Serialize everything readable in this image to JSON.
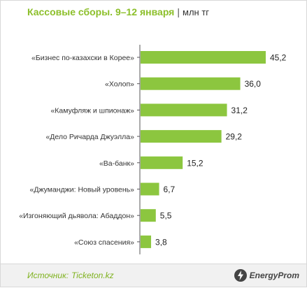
{
  "header": {
    "title": "Кассовые сборы. 9–12 января",
    "separator": "|",
    "unit": "млн тг"
  },
  "chart_data": {
    "type": "bar",
    "orientation": "horizontal",
    "categories": [
      "«Бизнес по-казахски в Корее»",
      "«Холоп»",
      "«Камуфляж и шпионаж»",
      "«Дело Ричарда Джуэлла»",
      "«Ва-банк»",
      "«Джуманджи: Новый уровень»",
      "«Изгоняющий дьявола: Абаддон»",
      "«Союз спасения»"
    ],
    "values": [
      45.2,
      36.0,
      31.2,
      29.2,
      15.2,
      6.7,
      5.5,
      3.8
    ],
    "value_labels": [
      "45,2",
      "36,0",
      "31,2",
      "29,2",
      "15,2",
      "6,7",
      "5,5",
      "3,8"
    ],
    "title": "Кассовые сборы. 9–12 января",
    "unit": "млн тг",
    "xlim": [
      0,
      45.2
    ],
    "grid": false,
    "legend": "none",
    "bar_color": "#8cc63f"
  },
  "footer": {
    "source_label": "Источник:",
    "source_value": "Ticketon.kz",
    "logo_text": "EnergyProm"
  },
  "colors": {
    "accent": "#8cbf2a",
    "bar": "#8cc63f",
    "axis": "#555555"
  }
}
